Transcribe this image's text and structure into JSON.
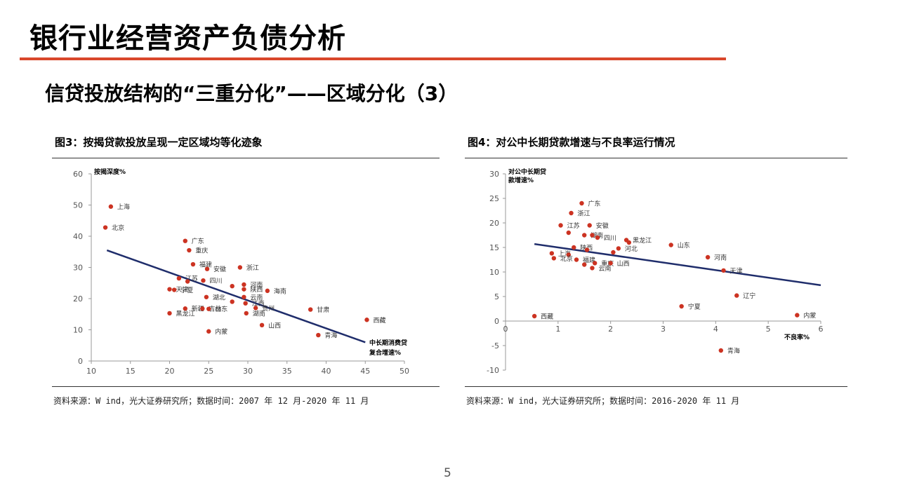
{
  "slide": {
    "title": "银行业经营资产负债分析",
    "subtitle": "信贷投放结构的“三重分化”——区域分化（3）",
    "page_number": "5",
    "accent_color": "#d9472b",
    "point_color": "#cc3322",
    "line_color": "#1f2d6b"
  },
  "figures": [
    {
      "title": "图3：按揭贷款投放呈现一定区域均等化迹象",
      "source": "资料来源：W ind，光大证券研究所；数据时间：2007 年 12 月-2020 年 11 月"
    },
    {
      "title": "图4：对公中长期贷款增速与不良率运行情况",
      "source": "资料来源：W ind，光大证券研究所；数据时间：2016-2020 年 11 月"
    }
  ],
  "chart_data": [
    {
      "type": "scatter",
      "title": "图3：按揭贷款投放呈现一定区域均等化迹象",
      "ylabel": "按揭深度%",
      "xlabel_lines": [
        "中长期消费贷",
        "复合增速%"
      ],
      "xlim": [
        10,
        50
      ],
      "ylim": [
        0,
        60
      ],
      "xticks": [
        10,
        15,
        20,
        25,
        30,
        35,
        40,
        45,
        50
      ],
      "yticks": [
        0,
        10,
        20,
        30,
        40,
        50,
        60
      ],
      "points": [
        {
          "label": "上海",
          "x": 12.5,
          "y": 49.5
        },
        {
          "label": "北京",
          "x": 11.8,
          "y": 42.8
        },
        {
          "label": "广东",
          "x": 22.0,
          "y": 38.5
        },
        {
          "label": "重庆",
          "x": 22.5,
          "y": 35.5
        },
        {
          "label": "福建",
          "x": 23.0,
          "y": 31.0
        },
        {
          "label": "安徽",
          "x": 24.8,
          "y": 29.5
        },
        {
          "label": "浙江",
          "x": 29.0,
          "y": 30.0
        },
        {
          "label": "江苏",
          "x": 21.2,
          "y": 26.5
        },
        {
          "label": "",
          "x": 22.3,
          "y": 25.5
        },
        {
          "label": "四川",
          "x": 24.3,
          "y": 25.8
        },
        {
          "label": "天津",
          "x": 20.0,
          "y": 23.0
        },
        {
          "label": "宁夏",
          "x": 20.6,
          "y": 22.8
        },
        {
          "label": "",
          "x": 28.0,
          "y": 24.0
        },
        {
          "label": "河南",
          "x": 29.5,
          "y": 24.5
        },
        {
          "label": "陕西",
          "x": 29.5,
          "y": 23.0
        },
        {
          "label": "海南",
          "x": 32.5,
          "y": 22.5
        },
        {
          "label": "湖北",
          "x": 24.7,
          "y": 20.5
        },
        {
          "label": "云南",
          "x": 29.5,
          "y": 20.5
        },
        {
          "label": "",
          "x": 28.0,
          "y": 19.0
        },
        {
          "label": "江西",
          "x": 29.7,
          "y": 18.5
        },
        {
          "label": "贵州",
          "x": 31.0,
          "y": 17.0
        },
        {
          "label": "新疆",
          "x": 22.0,
          "y": 16.8
        },
        {
          "label": "吉林",
          "x": 24.2,
          "y": 16.8
        },
        {
          "label": "山东",
          "x": 25.0,
          "y": 16.7
        },
        {
          "label": "黑龙江",
          "x": 20.0,
          "y": 15.3
        },
        {
          "label": "湖南",
          "x": 29.8,
          "y": 15.3
        },
        {
          "label": "甘肃",
          "x": 38.0,
          "y": 16.5
        },
        {
          "label": "西藏",
          "x": 45.2,
          "y": 13.2
        },
        {
          "label": "山西",
          "x": 31.8,
          "y": 11.5
        },
        {
          "label": "内蒙",
          "x": 25.0,
          "y": 9.5
        },
        {
          "label": "青海",
          "x": 39.0,
          "y": 8.3
        }
      ],
      "trendline": {
        "x1": 12.0,
        "y1": 35.5,
        "x2": 45.0,
        "y2": 6.0
      }
    },
    {
      "type": "scatter",
      "title": "图4：对公中长期贷款增速与不良率运行情况",
      "ylabel_lines": [
        "对公中长期贷",
        "款增速%"
      ],
      "xlabel": "不良率%",
      "xlim": [
        0,
        6
      ],
      "ylim": [
        -10,
        30
      ],
      "xticks": [
        0,
        1,
        2,
        3,
        4,
        5,
        6
      ],
      "yticks": [
        -10,
        -5,
        0,
        5,
        10,
        15,
        20,
        25,
        30
      ],
      "points": [
        {
          "label": "广东",
          "x": 1.45,
          "y": 24.0
        },
        {
          "label": "浙江",
          "x": 1.25,
          "y": 22.0
        },
        {
          "label": "江苏",
          "x": 1.05,
          "y": 19.5
        },
        {
          "label": "安徽",
          "x": 1.6,
          "y": 19.5
        },
        {
          "label": "",
          "x": 1.2,
          "y": 18.0
        },
        {
          "label": "湖南",
          "x": 1.5,
          "y": 17.5
        },
        {
          "label": "",
          "x": 1.65,
          "y": 17.5
        },
        {
          "label": "四川",
          "x": 1.75,
          "y": 17.0
        },
        {
          "label": "黑龙江",
          "x": 2.3,
          "y": 16.5
        },
        {
          "label": "",
          "x": 2.35,
          "y": 16.0
        },
        {
          "label": "山东",
          "x": 3.15,
          "y": 15.5
        },
        {
          "label": "陕西",
          "x": 1.3,
          "y": 15.0
        },
        {
          "label": "",
          "x": 1.55,
          "y": 14.5
        },
        {
          "label": "河北",
          "x": 2.15,
          "y": 14.8
        },
        {
          "label": "",
          "x": 2.05,
          "y": 14.0
        },
        {
          "label": "上海",
          "x": 0.88,
          "y": 13.8
        },
        {
          "label": "",
          "x": 1.2,
          "y": 13.5
        },
        {
          "label": "北京",
          "x": 0.92,
          "y": 12.8
        },
        {
          "label": "河南",
          "x": 3.85,
          "y": 13.0
        },
        {
          "label": "福建",
          "x": 1.35,
          "y": 12.5
        },
        {
          "label": "",
          "x": 1.5,
          "y": 11.5
        },
        {
          "label": "重庆",
          "x": 1.7,
          "y": 11.8
        },
        {
          "label": "云南",
          "x": 1.65,
          "y": 10.8
        },
        {
          "label": "山西",
          "x": 2.0,
          "y": 11.8
        },
        {
          "label": "天津",
          "x": 4.15,
          "y": 10.3
        },
        {
          "label": "辽宁",
          "x": 4.4,
          "y": 5.2
        },
        {
          "label": "宁夏",
          "x": 3.35,
          "y": 3.0
        },
        {
          "label": "西藏",
          "x": 0.55,
          "y": 1.0
        },
        {
          "label": "内蒙",
          "x": 5.55,
          "y": 1.2
        },
        {
          "label": "青海",
          "x": 4.1,
          "y": -6.0
        }
      ],
      "trendline": {
        "x1": 0.55,
        "y1": 15.7,
        "x2": 6.0,
        "y2": 7.3
      }
    }
  ]
}
